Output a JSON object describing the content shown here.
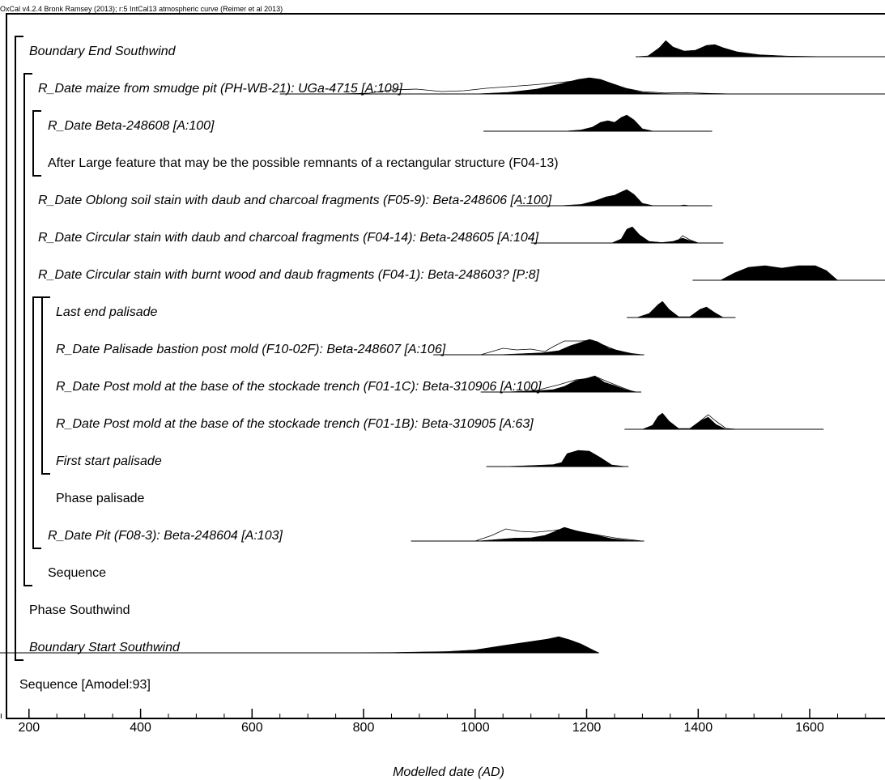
{
  "header": "OxCal v4.2.4 Bronk Ramsey (2013); r:5 IntCal13 atmospheric curve (Reimer et al 2013)",
  "chart_data": {
    "type": "area",
    "xlabel": "Modelled date (AD)",
    "xlim": [
      148,
      1735
    ],
    "xticks": [
      200,
      400,
      600,
      800,
      1000,
      1200,
      1400,
      1600
    ],
    "rows": [
      {
        "label": "Boundary End Southwind",
        "italic": true,
        "indent": 1,
        "line": [
          1288,
          1735
        ],
        "posterior": [
          [
            1288,
            0
          ],
          [
            1310,
            0.05
          ],
          [
            1330,
            0.55
          ],
          [
            1342,
            1
          ],
          [
            1355,
            0.6
          ],
          [
            1375,
            0.35
          ],
          [
            1395,
            0.4
          ],
          [
            1415,
            0.7
          ],
          [
            1430,
            0.75
          ],
          [
            1445,
            0.55
          ],
          [
            1470,
            0.3
          ],
          [
            1510,
            0.12
          ],
          [
            1560,
            0.04
          ],
          [
            1620,
            0.01
          ],
          [
            1680,
            0
          ]
        ],
        "prior": []
      },
      {
        "label": "R_Date maize from smudge pit (PH-WB-21): UGa-4715 [A:109]",
        "italic": true,
        "indent": 2,
        "line": [
          650,
          1735
        ],
        "posterior": [
          [
            1000,
            0
          ],
          [
            1060,
            0.1
          ],
          [
            1110,
            0.3
          ],
          [
            1150,
            0.6
          ],
          [
            1185,
            0.9
          ],
          [
            1205,
            1
          ],
          [
            1225,
            0.9
          ],
          [
            1245,
            0.65
          ],
          [
            1275,
            0.3
          ],
          [
            1300,
            0.1
          ],
          [
            1330,
            0.03
          ],
          [
            1360,
            0
          ]
        ],
        "prior": [
          [
            760,
            0
          ],
          [
            810,
            0.05
          ],
          [
            850,
            0.25
          ],
          [
            895,
            0.3
          ],
          [
            940,
            0.15
          ],
          [
            980,
            0.2
          ],
          [
            1020,
            0.35
          ],
          [
            1060,
            0.45
          ],
          [
            1100,
            0.55
          ],
          [
            1150,
            0.7
          ],
          [
            1190,
            0.85
          ],
          [
            1210,
            0.9
          ],
          [
            1240,
            0.7
          ],
          [
            1270,
            0.35
          ],
          [
            1300,
            0.15
          ],
          [
            1340,
            0.06
          ],
          [
            1380,
            0.08
          ],
          [
            1420,
            0.03
          ],
          [
            1460,
            0
          ]
        ]
      },
      {
        "label": "R_Date Beta-248608 [A:100]",
        "italic": true,
        "indent": 3,
        "line": [
          1015,
          1425
        ],
        "posterior": [
          [
            1160,
            0
          ],
          [
            1190,
            0.08
          ],
          [
            1210,
            0.25
          ],
          [
            1225,
            0.55
          ],
          [
            1238,
            0.65
          ],
          [
            1250,
            0.55
          ],
          [
            1262,
            0.85
          ],
          [
            1272,
            1
          ],
          [
            1285,
            0.7
          ],
          [
            1300,
            0.15
          ],
          [
            1320,
            0
          ]
        ],
        "prior": []
      },
      {
        "label": "After Large feature that may be the possible remnants of a rectangular structure (F04-13)",
        "italic": false,
        "indent": 3,
        "line": null,
        "posterior": [],
        "prior": []
      },
      {
        "label": "R_Date Oblong soil stain with daub and charcoal fragments (F05-9): Beta-248606 [A:100]",
        "italic": true,
        "indent": 2,
        "line": [
          1075,
          1425
        ],
        "posterior": [
          [
            1150,
            0
          ],
          [
            1190,
            0.08
          ],
          [
            1215,
            0.3
          ],
          [
            1235,
            0.55
          ],
          [
            1250,
            0.65
          ],
          [
            1262,
            0.85
          ],
          [
            1272,
            1
          ],
          [
            1285,
            0.7
          ],
          [
            1300,
            0.15
          ],
          [
            1320,
            0
          ],
          [
            1365,
            0
          ],
          [
            1375,
            0.05
          ],
          [
            1385,
            0
          ]
        ],
        "prior": []
      },
      {
        "label": "R_Date Circular stain with daub and charcoal fragments (F04-14): Beta-248605 [A:104]",
        "italic": true,
        "indent": 2,
        "line": [
          1100,
          1445
        ],
        "posterior": [
          [
            1245,
            0
          ],
          [
            1262,
            0.25
          ],
          [
            1272,
            0.85
          ],
          [
            1282,
            1
          ],
          [
            1295,
            0.5
          ],
          [
            1312,
            0.1
          ],
          [
            1335,
            0.03
          ],
          [
            1355,
            0.1
          ],
          [
            1372,
            0.3
          ],
          [
            1385,
            0.15
          ],
          [
            1400,
            0
          ]
        ],
        "prior": [
          [
            1360,
            0
          ],
          [
            1372,
            0.45
          ],
          [
            1385,
            0.2
          ],
          [
            1400,
            0
          ]
        ]
      },
      {
        "label": "R_Date Circular stain with burnt wood and daub fragments (F04-1): Beta-248603? [P:8]",
        "italic": true,
        "indent": 2,
        "line": [
          1390,
          1735
        ],
        "posterior": [
          [
            1440,
            0
          ],
          [
            1465,
            0.45
          ],
          [
            1490,
            0.8
          ],
          [
            1520,
            0.9
          ],
          [
            1550,
            0.75
          ],
          [
            1580,
            0.9
          ],
          [
            1610,
            0.9
          ],
          [
            1630,
            0.6
          ],
          [
            1650,
            0
          ]
        ],
        "prior": []
      },
      {
        "label": "Last end palisade",
        "italic": true,
        "indent": 5,
        "line": [
          1272,
          1467
        ],
        "posterior": [
          [
            1290,
            0
          ],
          [
            1312,
            0.25
          ],
          [
            1328,
            0.8
          ],
          [
            1336,
            1
          ],
          [
            1348,
            0.5
          ],
          [
            1365,
            0.05
          ],
          [
            1385,
            0.05
          ],
          [
            1403,
            0.5
          ],
          [
            1415,
            0.65
          ],
          [
            1430,
            0.3
          ],
          [
            1445,
            0
          ]
        ],
        "prior": []
      },
      {
        "label": "R_Date Palisade bastion post mold (F10-02F): Beta-248607 [A:106]",
        "italic": true,
        "indent": 5,
        "line": [
          925,
          1303
        ],
        "posterior": [
          [
            1040,
            0
          ],
          [
            1080,
            0.06
          ],
          [
            1120,
            0.12
          ],
          [
            1150,
            0.25
          ],
          [
            1170,
            0.55
          ],
          [
            1188,
            0.75
          ],
          [
            1205,
            0.95
          ],
          [
            1220,
            0.8
          ],
          [
            1240,
            0.4
          ],
          [
            1265,
            0.2
          ],
          [
            1290,
            0
          ]
        ],
        "prior": [
          [
            1010,
            0
          ],
          [
            1050,
            0.4
          ],
          [
            1075,
            0.3
          ],
          [
            1100,
            0.35
          ],
          [
            1125,
            0.2
          ],
          [
            1140,
            0.5
          ],
          [
            1160,
            0.85
          ],
          [
            1190,
            0.85
          ],
          [
            1210,
            0.9
          ],
          [
            1230,
            0.6
          ],
          [
            1255,
            0.25
          ],
          [
            1280,
            0.08
          ],
          [
            1300,
            0
          ]
        ]
      },
      {
        "label": "R_Date Post mold at the base of the stockade trench (F01-1C): Beta-310906 [A:100]",
        "italic": true,
        "indent": 5,
        "line": [
          1010,
          1298
        ],
        "posterior": [
          [
            1060,
            0
          ],
          [
            1100,
            0.05
          ],
          [
            1140,
            0.15
          ],
          [
            1160,
            0.35
          ],
          [
            1180,
            0.7
          ],
          [
            1200,
            0.85
          ],
          [
            1215,
            1
          ],
          [
            1232,
            0.6
          ],
          [
            1250,
            0.4
          ],
          [
            1270,
            0.15
          ],
          [
            1290,
            0
          ]
        ],
        "prior": [
          [
            1060,
            0
          ],
          [
            1110,
            0.1
          ],
          [
            1150,
            0.45
          ],
          [
            1180,
            0.75
          ],
          [
            1205,
            0.85
          ],
          [
            1220,
            0.9
          ],
          [
            1240,
            0.6
          ],
          [
            1262,
            0.3
          ],
          [
            1285,
            0
          ]
        ]
      },
      {
        "label": "R_Date Post mold at the base of the stockade trench (F01-1B): Beta-310905 [A:63]",
        "italic": true,
        "indent": 5,
        "line": [
          1268,
          1625
        ],
        "posterior": [
          [
            1300,
            0
          ],
          [
            1318,
            0.25
          ],
          [
            1328,
            0.8
          ],
          [
            1336,
            1
          ],
          [
            1348,
            0.5
          ],
          [
            1365,
            0.05
          ],
          [
            1385,
            0.05
          ],
          [
            1403,
            0.5
          ],
          [
            1418,
            0.75
          ],
          [
            1432,
            0.3
          ],
          [
            1450,
            0
          ]
        ],
        "prior": [
          [
            1390,
            0
          ],
          [
            1405,
            0.55
          ],
          [
            1418,
            0.9
          ],
          [
            1432,
            0.5
          ],
          [
            1450,
            0.05
          ],
          [
            1470,
            0
          ]
        ]
      },
      {
        "label": "First start palisade",
        "italic": true,
        "indent": 5,
        "line": [
          1020,
          1275
        ],
        "posterior": [
          [
            1050,
            0
          ],
          [
            1100,
            0.06
          ],
          [
            1140,
            0.12
          ],
          [
            1155,
            0.25
          ],
          [
            1165,
            0.8
          ],
          [
            1185,
            1
          ],
          [
            1205,
            0.95
          ],
          [
            1225,
            0.55
          ],
          [
            1245,
            0.1
          ],
          [
            1270,
            0
          ]
        ],
        "prior": []
      },
      {
        "label": "Phase palisade",
        "italic": false,
        "indent": 5,
        "line": null,
        "posterior": [],
        "prior": []
      },
      {
        "label": "R_Date Pit (F08-3): Beta-248604 [A:103]",
        "italic": true,
        "indent": 3,
        "line": [
          885,
          1303
        ],
        "posterior": [
          [
            1005,
            0
          ],
          [
            1040,
            0.1
          ],
          [
            1070,
            0.18
          ],
          [
            1100,
            0.2
          ],
          [
            1125,
            0.35
          ],
          [
            1140,
            0.55
          ],
          [
            1160,
            0.85
          ],
          [
            1180,
            0.65
          ],
          [
            1200,
            0.5
          ],
          [
            1220,
            0.35
          ],
          [
            1245,
            0.15
          ],
          [
            1275,
            0.05
          ],
          [
            1300,
            0
          ]
        ],
        "prior": [
          [
            1000,
            0
          ],
          [
            1030,
            0.35
          ],
          [
            1055,
            0.75
          ],
          [
            1080,
            0.6
          ],
          [
            1110,
            0.55
          ],
          [
            1140,
            0.65
          ],
          [
            1160,
            0.75
          ],
          [
            1180,
            0.6
          ],
          [
            1200,
            0.5
          ],
          [
            1225,
            0.35
          ],
          [
            1250,
            0.2
          ],
          [
            1280,
            0.08
          ],
          [
            1300,
            0
          ]
        ]
      },
      {
        "label": "Sequence",
        "italic": false,
        "indent": 3,
        "line": null,
        "posterior": [],
        "prior": []
      },
      {
        "label": "Phase Southwind",
        "italic": false,
        "indent": 1,
        "line": null,
        "posterior": [],
        "prior": []
      },
      {
        "label": "Boundary Start Southwind",
        "italic": true,
        "indent": 1,
        "line": [
          148,
          1222
        ],
        "posterior": [
          [
            700,
            0
          ],
          [
            850,
            0.02
          ],
          [
            950,
            0.08
          ],
          [
            1000,
            0.18
          ],
          [
            1050,
            0.45
          ],
          [
            1100,
            0.7
          ],
          [
            1130,
            0.85
          ],
          [
            1150,
            1
          ],
          [
            1170,
            0.8
          ],
          [
            1190,
            0.55
          ],
          [
            1210,
            0.2
          ],
          [
            1222,
            0
          ]
        ],
        "prior": []
      },
      {
        "label": "Sequence [Amodel:93]",
        "italic": false,
        "indent": 0,
        "line": null,
        "posterior": [],
        "prior": []
      }
    ],
    "brackets": [
      {
        "from": 0,
        "to": 16,
        "level": 0
      },
      {
        "from": 1,
        "to": 14,
        "level": 1
      },
      {
        "from": 2,
        "to": 3,
        "level": 2
      },
      {
        "from": 7,
        "to": 13,
        "level": 2
      },
      {
        "from": 7,
        "to": 11,
        "level": 3
      }
    ]
  }
}
